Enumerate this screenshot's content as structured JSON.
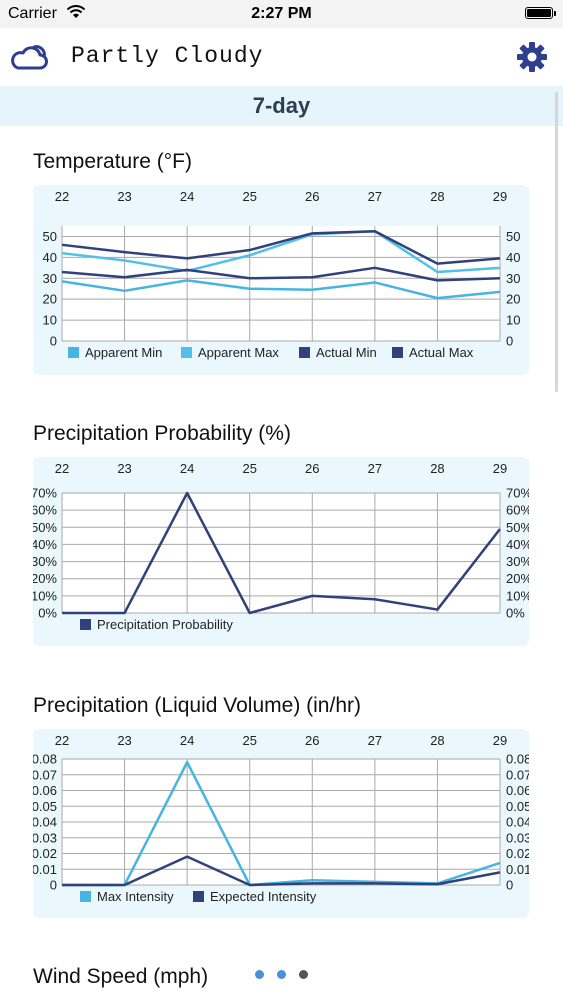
{
  "status_bar": {
    "carrier": "Carrier",
    "time": "2:27 PM"
  },
  "header": {
    "title": "Partly Cloudy",
    "cloud_icon": "cloud-icon",
    "settings_icon": "gear-icon",
    "accent_color": "#2f3f8e"
  },
  "tab": {
    "label": "7-day"
  },
  "sections": [
    {
      "title": "Temperature (°F)"
    },
    {
      "title": "Precipitation Probability (%)"
    },
    {
      "title": "Precipitation (Liquid Volume) (in/hr)"
    },
    {
      "title": "Wind Speed (mph)"
    }
  ],
  "chart_data": [
    {
      "type": "line",
      "title": "Temperature (°F)",
      "categories": [
        "22",
        "23",
        "24",
        "25",
        "26",
        "27",
        "28",
        "29"
      ],
      "ylim": [
        0,
        55
      ],
      "y_ticks": [
        "0",
        "10",
        "20",
        "30",
        "40",
        "50"
      ],
      "grid": true,
      "legend": "bottom",
      "series": [
        {
          "name": "Apparent Min",
          "color": "#46b5e0",
          "values": [
            28.5,
            24,
            29,
            25,
            24.5,
            28,
            20.5,
            23.5
          ]
        },
        {
          "name": "Apparent Max",
          "color": "#52c0e6",
          "values": [
            42,
            38.5,
            33.5,
            41,
            51,
            52.5,
            33,
            35
          ]
        },
        {
          "name": "Actual Min",
          "color": "#31417a",
          "values": [
            33,
            30.5,
            34,
            30,
            30.5,
            35,
            29,
            30
          ]
        },
        {
          "name": "Actual Max",
          "color": "#31417a",
          "values": [
            46,
            42.5,
            39.5,
            43.5,
            51.5,
            52.5,
            37,
            39.5
          ]
        }
      ]
    },
    {
      "type": "line",
      "title": "Precipitation Probability (%)",
      "categories": [
        "22",
        "23",
        "24",
        "25",
        "26",
        "27",
        "28",
        "29"
      ],
      "ylim": [
        0,
        70
      ],
      "y_ticks": [
        "0%",
        "10%",
        "20%",
        "30%",
        "40%",
        "50%",
        "60%",
        "70%"
      ],
      "grid": true,
      "legend": "bottom",
      "series": [
        {
          "name": "Precipitation Probability",
          "color": "#31417a",
          "values": [
            0,
            0,
            70,
            0,
            10,
            8,
            2,
            49
          ]
        }
      ]
    },
    {
      "type": "line",
      "title": "Precipitation (Liquid Volume) (in/hr)",
      "categories": [
        "22",
        "23",
        "24",
        "25",
        "26",
        "27",
        "28",
        "29"
      ],
      "ylim": [
        0,
        0.08
      ],
      "y_ticks": [
        "0",
        "0.01",
        "0.02",
        "0.03",
        "0.04",
        "0.05",
        "0.06",
        "0.07",
        "0.08"
      ],
      "grid": true,
      "legend": "bottom",
      "series": [
        {
          "name": "Max Intensity",
          "color": "#46b5e0",
          "values": [
            0,
            0,
            0.078,
            0,
            0.003,
            0.002,
            0.001,
            0.014
          ]
        },
        {
          "name": "Expected Intensity",
          "color": "#31417a",
          "values": [
            0,
            0,
            0.018,
            0,
            0.001,
            0.001,
            0.0005,
            0.008
          ]
        }
      ]
    }
  ],
  "page_dots": [
    {
      "color": "#4a90d9"
    },
    {
      "color": "#4a90d9"
    },
    {
      "color": "#555555"
    }
  ]
}
